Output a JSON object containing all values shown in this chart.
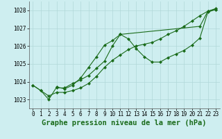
{
  "title": "Graphe pression niveau de la mer (hPa)",
  "ylim": [
    1022.5,
    1028.5
  ],
  "xlim": [
    -0.5,
    23.5
  ],
  "yticks": [
    1023,
    1024,
    1025,
    1026,
    1027,
    1028
  ],
  "xticks": [
    0,
    1,
    2,
    3,
    4,
    5,
    6,
    7,
    8,
    9,
    10,
    11,
    12,
    13,
    14,
    15,
    16,
    17,
    18,
    19,
    20,
    21,
    22,
    23
  ],
  "line_color": "#1a6b1a",
  "bg_color": "#ceeef0",
  "grid_color": "#b0d8d8",
  "series": [
    {
      "x": [
        0,
        1,
        2,
        3,
        4,
        5,
        6,
        7,
        8,
        9,
        10,
        11,
        21,
        22,
        23
      ],
      "y": [
        1023.8,
        1023.5,
        1023.0,
        1023.7,
        1023.6,
        1023.8,
        1024.2,
        1024.8,
        1025.4,
        1026.05,
        1026.3,
        1026.65,
        1027.1,
        1027.95,
        1028.05
      ]
    },
    {
      "x": [
        3,
        4,
        5,
        6,
        7,
        8,
        9,
        10,
        11,
        12,
        13,
        14,
        15,
        16,
        17,
        18,
        19,
        20,
        21,
        22,
        23
      ],
      "y": [
        1023.65,
        1023.65,
        1023.9,
        1024.1,
        1024.35,
        1024.75,
        1025.15,
        1026.0,
        1026.65,
        1026.4,
        1025.85,
        1025.4,
        1025.1,
        1025.1,
        1025.35,
        1025.55,
        1025.75,
        1026.05,
        1026.45,
        1027.9,
        1028.05
      ]
    },
    {
      "x": [
        0,
        1,
        2,
        3,
        4,
        5,
        6,
        7,
        8,
        9,
        10,
        11,
        12,
        13,
        14,
        15,
        16,
        17,
        18,
        19,
        20,
        21,
        22,
        23
      ],
      "y": [
        1023.8,
        1023.5,
        1023.2,
        1023.4,
        1023.4,
        1023.5,
        1023.65,
        1023.9,
        1024.3,
        1024.8,
        1025.2,
        1025.5,
        1025.8,
        1026.0,
        1026.1,
        1026.2,
        1026.4,
        1026.65,
        1026.85,
        1027.1,
        1027.4,
        1027.7,
        1027.95,
        1028.1
      ]
    }
  ],
  "title_fontsize": 7.5,
  "tick_fontsize": 5.5,
  "marker": "D",
  "marker_size": 2.0,
  "linewidth": 0.8
}
